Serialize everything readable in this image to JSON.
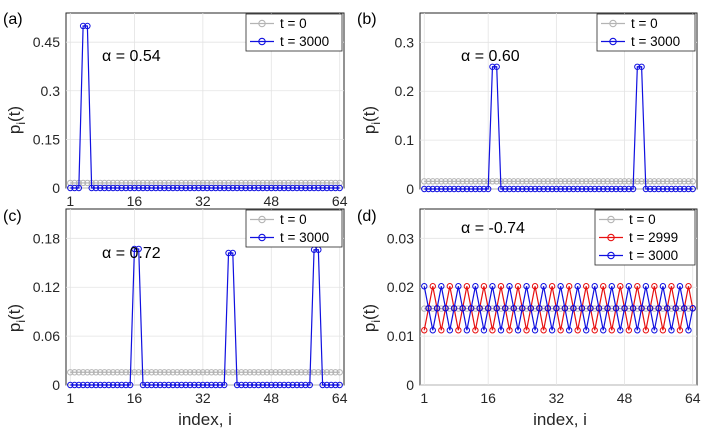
{
  "figure": {
    "ylabel_main": "p",
    "ylabel_sub": "i",
    "ylabel_tail": "(t)",
    "xlabel": "index, i"
  },
  "colors": {
    "gray": "#b4b4b4",
    "blue": "#1010e0",
    "red": "#e81010"
  },
  "chart_data": [
    {
      "type": "line",
      "panel": "(a)",
      "annotation": "α = 0.54",
      "x_ticks": [
        "1",
        "16",
        "32",
        "48",
        "64"
      ],
      "x_tick_values": [
        1,
        16,
        32,
        48,
        64
      ],
      "y_ticks": [
        "0",
        "0.15",
        "0.3",
        "0.45"
      ],
      "y_tick_values": [
        0,
        0.15,
        0.3,
        0.45
      ],
      "ylim": [
        0,
        0.54
      ],
      "xlim": [
        0,
        65
      ],
      "legend_position": "top-right",
      "series": [
        {
          "name": "t = 0",
          "color": "gray",
          "constant": 0.015625,
          "n": 64
        },
        {
          "name": "t = 3000",
          "color": "blue",
          "peaks": [
            [
              4,
              0.5
            ],
            [
              5,
              0.5
            ]
          ],
          "n": 64
        }
      ]
    },
    {
      "type": "line",
      "panel": "(b)",
      "annotation": "α = 0.60",
      "x_ticks": [],
      "x_tick_values": [
        1,
        16,
        32,
        48,
        64
      ],
      "y_ticks": [
        "0",
        "0.1",
        "0.2",
        "0.3"
      ],
      "y_tick_values": [
        0,
        0.1,
        0.2,
        0.3
      ],
      "ylim": [
        0,
        0.36
      ],
      "xlim": [
        0,
        65
      ],
      "legend_position": "top-right",
      "series": [
        {
          "name": "t = 0",
          "color": "gray",
          "constant": 0.015625,
          "n": 64
        },
        {
          "name": "t = 3000",
          "color": "blue",
          "peaks": [
            [
              17,
              0.25
            ],
            [
              18,
              0.25
            ],
            [
              51,
              0.25
            ],
            [
              52,
              0.25
            ]
          ],
          "n": 64
        }
      ]
    },
    {
      "type": "line",
      "panel": "(c)",
      "annotation": "α = 0.72",
      "x_ticks": [
        "1",
        "16",
        "32",
        "48",
        "64"
      ],
      "x_tick_values": [
        1,
        16,
        32,
        48,
        64
      ],
      "y_ticks": [
        "0",
        "0.06",
        "0.12",
        "0.18"
      ],
      "y_tick_values": [
        0,
        0.06,
        0.12,
        0.18
      ],
      "ylim": [
        0,
        0.216
      ],
      "xlim": [
        0,
        65
      ],
      "legend_position": "top-right",
      "series": [
        {
          "name": "t = 0",
          "color": "gray",
          "constant": 0.015625,
          "n": 64
        },
        {
          "name": "t = 3000",
          "color": "blue",
          "peaks": [
            [
              16,
              0.167
            ],
            [
              17,
              0.167
            ],
            [
              38,
              0.162
            ],
            [
              39,
              0.162
            ],
            [
              58,
              0.166
            ],
            [
              59,
              0.166
            ]
          ],
          "n": 64
        }
      ]
    },
    {
      "type": "line",
      "panel": "(d)",
      "annotation": "α = -0.74",
      "x_ticks": [
        "1",
        "16",
        "32",
        "48",
        "64"
      ],
      "x_tick_values": [
        1,
        16,
        32,
        48,
        64
      ],
      "y_ticks": [
        "0",
        "0.01",
        "0.02",
        "0.03"
      ],
      "y_tick_values": [
        0,
        0.01,
        0.02,
        0.03
      ],
      "ylim": [
        0,
        0.036
      ],
      "xlim": [
        0,
        65
      ],
      "legend_position": "top-right",
      "series": [
        {
          "name": "t = 0",
          "color": "gray",
          "constant": 0.015625,
          "n": 64
        },
        {
          "name": "t = 2999",
          "color": "red",
          "oscillate": {
            "period": 4,
            "phase": 0,
            "mean": 0.0157,
            "amp": 0.0045
          },
          "n": 64
        },
        {
          "name": "t = 3000",
          "color": "blue",
          "oscillate": {
            "period": 4,
            "phase": 2,
            "mean": 0.0157,
            "amp": 0.0045
          },
          "n": 64
        }
      ]
    }
  ]
}
